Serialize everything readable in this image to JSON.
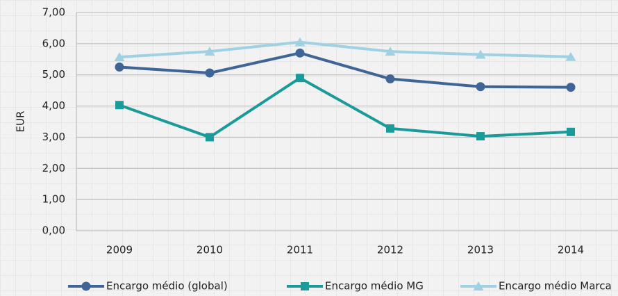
{
  "chart_data": {
    "type": "line",
    "ylabel": "EUR",
    "categories": [
      "2009",
      "2010",
      "2011",
      "2012",
      "2013",
      "2014"
    ],
    "series": [
      {
        "name": "Encargo médio (global)",
        "color": "#3f6597",
        "marker": "circle",
        "values": [
          5.25,
          5.06,
          5.7,
          4.87,
          4.62,
          4.6
        ]
      },
      {
        "name": "Encargo médio MG",
        "color": "#1a9a98",
        "marker": "square",
        "values": [
          4.03,
          3.0,
          4.9,
          3.28,
          3.03,
          3.17
        ]
      },
      {
        "name": "Encargo médio Marca",
        "color": "#9fd1e2",
        "marker": "triangle",
        "values": [
          5.57,
          5.75,
          6.05,
          5.75,
          5.65,
          5.58
        ]
      }
    ],
    "ylim": [
      0,
      7
    ],
    "yticks": [
      {
        "value": 0,
        "label": "0,00"
      },
      {
        "value": 1,
        "label": "1,00"
      },
      {
        "value": 2,
        "label": "2,00"
      },
      {
        "value": 3,
        "label": "3,00"
      },
      {
        "value": 4,
        "label": "4,00"
      },
      {
        "value": 5,
        "label": "5,00"
      },
      {
        "value": 6,
        "label": "6,00"
      },
      {
        "value": 7,
        "label": "7,00"
      }
    ],
    "grid": true,
    "legend": "bottom"
  }
}
